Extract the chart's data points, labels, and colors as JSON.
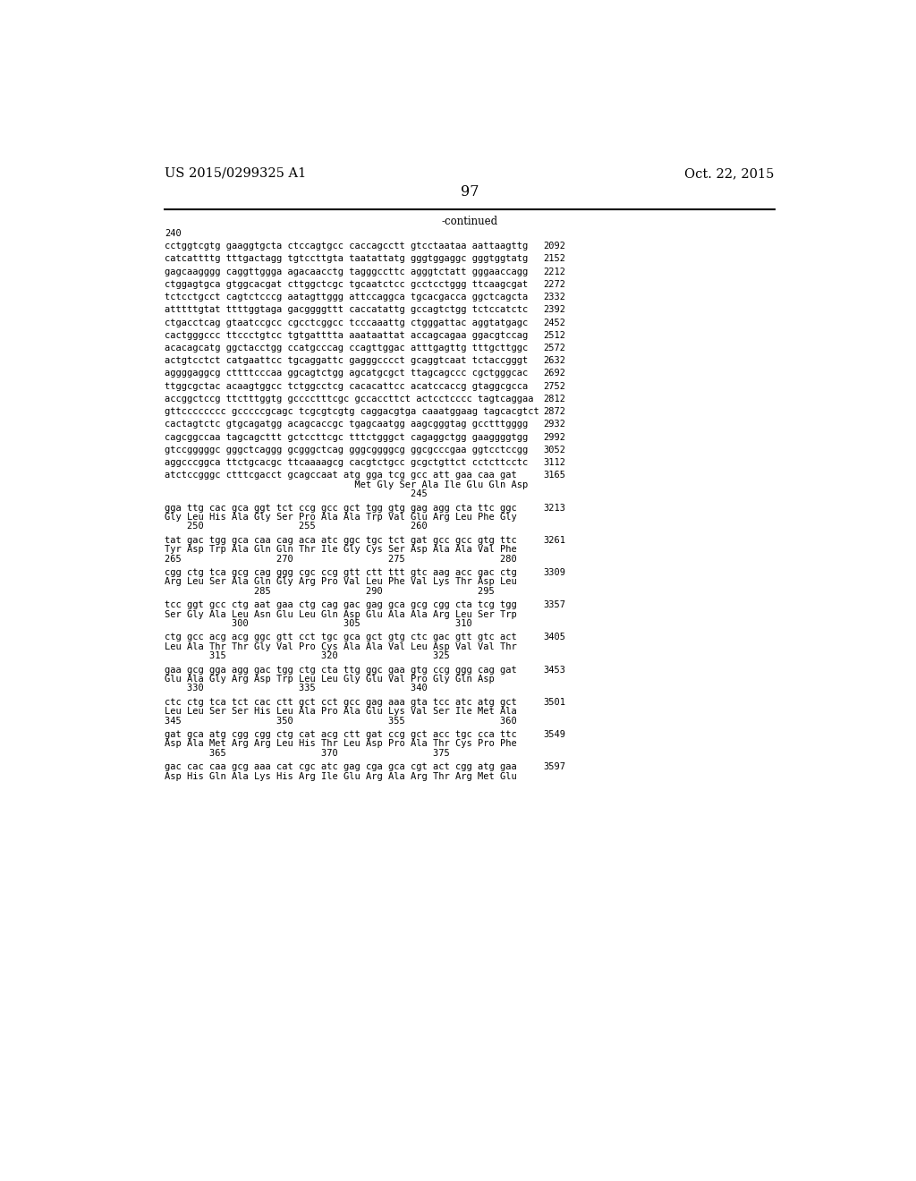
{
  "patent_number": "US 2015/0299325 A1",
  "date": "Oct. 22, 2015",
  "page_number": "97",
  "continued_label": "-continued",
  "background_color": "#ffffff",
  "text_color": "#000000",
  "sequence_start": "240",
  "lines": [
    {
      "text": "cctggtcgtg gaaggtgcta ctccagtgcc caccagcctt gtcctaataa aattaagttg",
      "num": "2092"
    },
    {
      "text": "catcattttg tttgactagg tgtccttgta taatattatg gggtggaggc gggtggtatg",
      "num": "2152"
    },
    {
      "text": "gagcaagggg caggttggga agacaacctg tagggccttc agggtctatt gggaaccagg",
      "num": "2212"
    },
    {
      "text": "ctggagtgca gtggcacgat cttggctcgc tgcaatctcc gcctcctggg ttcaagcgat",
      "num": "2272"
    },
    {
      "text": "tctcctgcct cagtctcccg aatagttggg attccaggca tgcacgacca ggctcagcta",
      "num": "2332"
    },
    {
      "text": "atttttgtat ttttggtaga gacggggttt caccatattg gccagtctgg tctccatctc",
      "num": "2392"
    },
    {
      "text": "ctgacctcag gtaatccgcc cgcctcggcc tcccaaattg ctgggattac aggtatgagc",
      "num": "2452"
    },
    {
      "text": "cactgggccc ttccctgtcc tgtgatttta aaataattat accagcagaa ggacgtccag",
      "num": "2512"
    },
    {
      "text": "acacagcatg ggctacctgg ccatgcccag ccagttggac atttgagttg tttgcttggc",
      "num": "2572"
    },
    {
      "text": "actgtcctct catgaattcc tgcaggattc gagggcccct gcaggtcaat tctaccgggt",
      "num": "2632"
    },
    {
      "text": "aggggaggcg cttttcccaa ggcagtctgg agcatgcgct ttagcagccc cgctgggcac",
      "num": "2692"
    },
    {
      "text": "ttggcgctac acaagtggcc tctggcctcg cacacattcc acatccaccg gtaggcgcca",
      "num": "2752"
    },
    {
      "text": "accggctccg ttctttggtg gcccctttcgc gccaccttct actcctcccc tagtcaggaa",
      "num": "2812"
    },
    {
      "text": "gttcccccccc gcccccgcagc tcgcgtcgtg caggacgtga caaatggaag tagcacgtct",
      "num": "2872"
    },
    {
      "text": "cactagtctc gtgcagatgg acagcaccgc tgagcaatgg aagcgggtag gcctttgggg",
      "num": "2932"
    },
    {
      "text": "cagcggccaa tagcagcttt gctccttcgc tttctgggct cagaggctgg gaaggggtgg",
      "num": "2992"
    },
    {
      "text": "gtccgggggc gggctcaggg gcgggctcag gggcggggcg ggcgcccgaa ggtcctccgg",
      "num": "3052"
    },
    {
      "text": "aggcccggca ttctgcacgc ttcaaaagcg cacgtctgcc gcgctgttct cctcttcctc",
      "num": "3112"
    },
    {
      "text": "atctccgggc ctttcgacct gcagccaat atg gga tcg gcc att gaa caa gat",
      "num": "3165",
      "aa_line": "                                  Met Gly Ser Ala Ile Glu Gln Asp",
      "num_line": "                                            245"
    },
    {
      "text": "gga ttg cac gca ggt tct ccg gcc gct tgg gtg gag agg cta ttc ggc",
      "num": "3213",
      "aa_line": "Gly Leu His Ala Gly Ser Pro Ala Ala Trp Val Glu Arg Leu Phe Gly",
      "num_line": "    250                 255                 260"
    },
    {
      "text": "tat gac tgg gca caa cag aca atc ggc tgc tct gat gcc gcc gtg ttc",
      "num": "3261",
      "aa_line": "Tyr Asp Trp Ala Gln Gln Thr Ile Gly Cys Ser Asp Ala Ala Val Phe",
      "num_line": "265                 270                 275                 280"
    },
    {
      "text": "cgg ctg tca gcg cag ggg cgc ccg gtt ctt ttt gtc aag acc gac ctg",
      "num": "3309",
      "aa_line": "Arg Leu Ser Ala Gln Gly Arg Pro Val Leu Phe Val Lys Thr Asp Leu",
      "num_line": "                285                 290                 295"
    },
    {
      "text": "tcc ggt gcc ctg aat gaa ctg cag gac gag gca gcg cgg cta tcg tgg",
      "num": "3357",
      "aa_line": "Ser Gly Ala Leu Asn Glu Leu Gln Asp Glu Ala Ala Arg Leu Ser Trp",
      "num_line": "            300                 305                 310"
    },
    {
      "text": "ctg gcc acg acg ggc gtt cct tgc gca gct gtg ctc gac gtt gtc act",
      "num": "3405",
      "aa_line": "Leu Ala Thr Thr Gly Val Pro Cys Ala Ala Val Leu Asp Val Val Thr",
      "num_line": "        315                 320                 325"
    },
    {
      "text": "gaa gcg gga agg gac tgg ctg cta ttg ggc gaa gtg ccg ggg cag gat",
      "num": "3453",
      "aa_line": "Glu Ala Gly Arg Asp Trp Leu Leu Gly Glu Val Pro Gly Gln Asp",
      "num_line": "    330                 335                 340"
    },
    {
      "text": "ctc ctg tca tct cac ctt gct cct gcc gag aaa gta tcc atc atg gct",
      "num": "3501",
      "aa_line": "Leu Leu Ser Ser His Leu Ala Pro Ala Glu Lys Val Ser Ile Met Ala",
      "num_line": "345                 350                 355                 360"
    },
    {
      "text": "gat gca atg cgg cgg ctg cat acg ctt gat ccg gct acc tgc cca ttc",
      "num": "3549",
      "aa_line": "Asp Ala Met Arg Arg Leu His Thr Leu Asp Pro Ala Thr Cys Pro Phe",
      "num_line": "        365                 370                 375"
    },
    {
      "text": "gac cac caa gcg aaa cat cgc atc gag cga gca cgt act cgg atg gaa",
      "num": "3597",
      "aa_line": "Asp His Gln Ala Lys His Arg Ile Glu Arg Ala Arg Thr Arg Met Glu",
      "num_line": ""
    }
  ]
}
